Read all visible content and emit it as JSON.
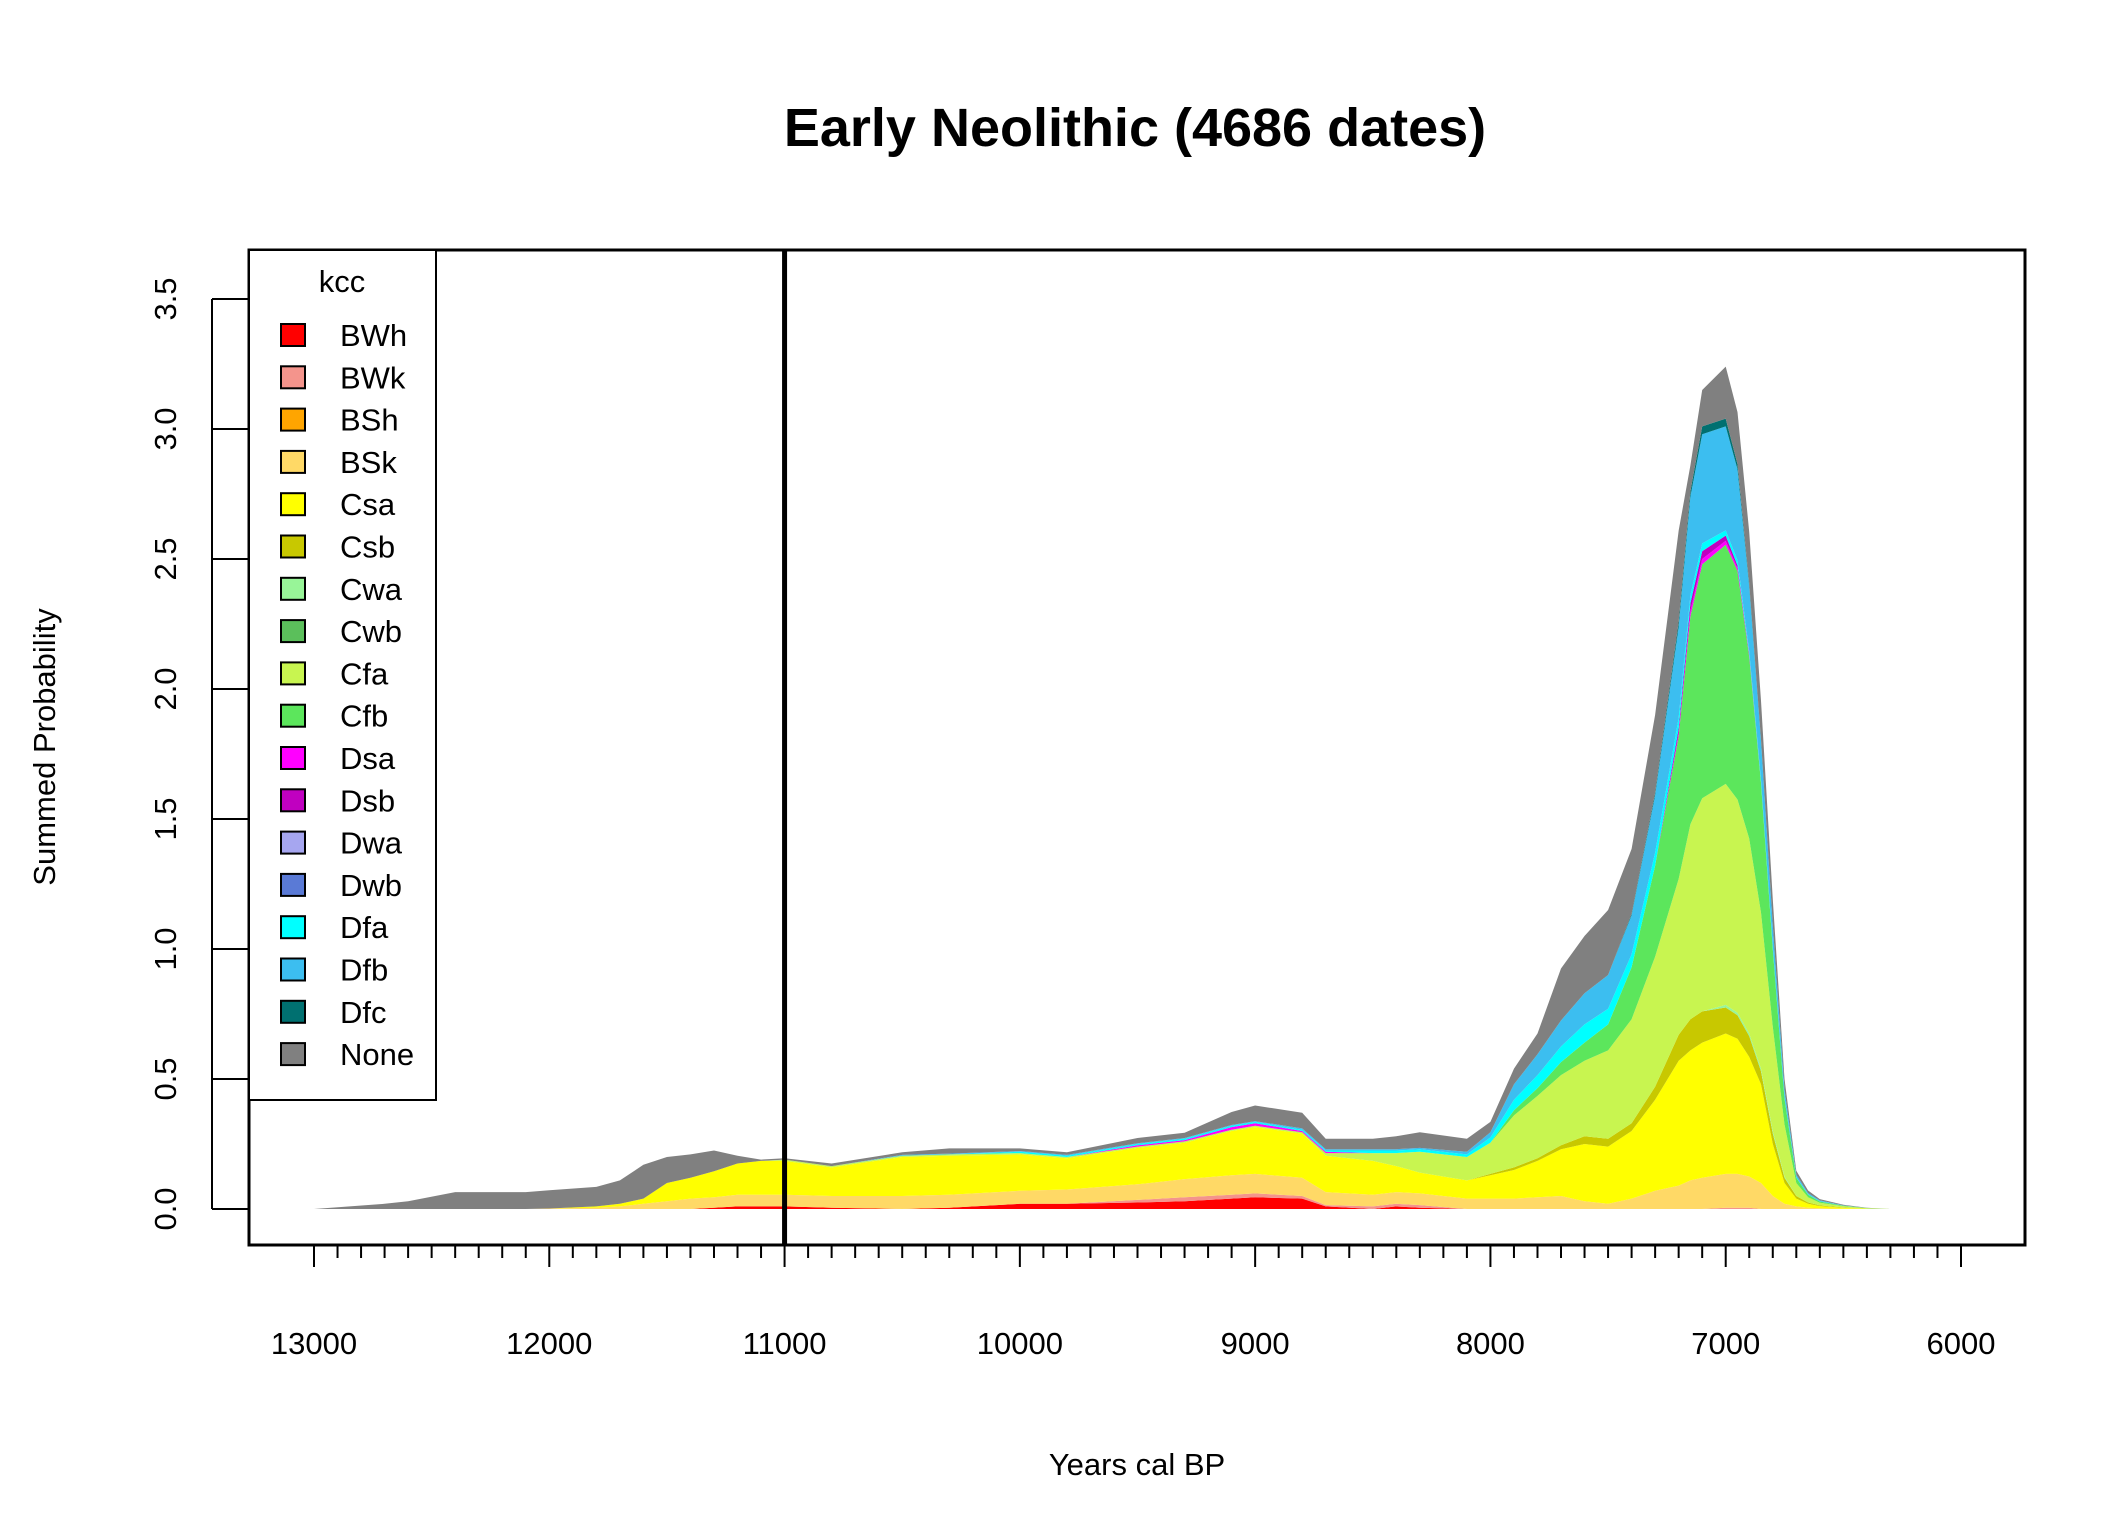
{
  "chart_data": {
    "type": "area",
    "title": "Early Neolithic (4686 dates)",
    "xlabel": "Years cal BP",
    "ylabel": "Summed Probability",
    "xlim": [
      13000,
      6000
    ],
    "ylim": [
      0,
      3.5
    ],
    "x_ticks": [
      "13000",
      "12000",
      "11000",
      "10000",
      "9000",
      "8000",
      "7000",
      "6000"
    ],
    "y_ticks": [
      "0.0",
      "0.5",
      "1.0",
      "1.5",
      "2.0",
      "2.5",
      "3.0",
      "3.5"
    ],
    "reference_line_x": 11000,
    "legend": {
      "title": "kcc",
      "position": "top-left"
    },
    "x": [
      13000,
      12700,
      12600,
      12400,
      12100,
      12000,
      11800,
      11700,
      11600,
      11500,
      11400,
      11300,
      11200,
      11100,
      11000,
      10800,
      10500,
      10300,
      10000,
      9800,
      9500,
      9300,
      9100,
      9000,
      8800,
      8700,
      8500,
      8400,
      8300,
      8100,
      8000,
      7900,
      7800,
      7700,
      7600,
      7500,
      7400,
      7300,
      7200,
      7150,
      7100,
      7000,
      6950,
      6900,
      6850,
      6800,
      6750,
      6700,
      6650,
      6600,
      6500,
      6400,
      6300,
      6200,
      6000
    ],
    "series": [
      {
        "name": "BWh",
        "color": "#ff0000",
        "values": [
          0,
          0,
          0,
          0,
          0,
          0,
          0,
          0,
          0,
          0,
          0,
          0.005,
          0.01,
          0.01,
          0.01,
          0.005,
          0,
          0.005,
          0.02,
          0.02,
          0.025,
          0.03,
          0.04,
          0.045,
          0.04,
          0.01,
          0,
          0.01,
          0.005,
          0,
          0,
          0,
          0,
          0,
          0,
          0,
          0,
          0,
          0,
          0,
          0,
          0,
          0,
          0,
          0,
          0,
          0,
          0,
          0,
          0,
          0,
          0,
          0,
          0,
          0
        ]
      },
      {
        "name": "BWk",
        "color": "#f4948c",
        "values": [
          0,
          0,
          0,
          0,
          0,
          0,
          0,
          0,
          0,
          0,
          0,
          0,
          0,
          0,
          0,
          0,
          0,
          0,
          0,
          0,
          0.01,
          0.015,
          0.015,
          0.015,
          0.01,
          0.005,
          0.01,
          0.01,
          0.01,
          0,
          0,
          0,
          0,
          0,
          0,
          0,
          0,
          0,
          0,
          0,
          0,
          0.005,
          0.005,
          0.005,
          0,
          0,
          0,
          0,
          0,
          0,
          0,
          0,
          0,
          0,
          0
        ]
      },
      {
        "name": "BSh",
        "color": "#ffa500",
        "values": [
          0,
          0,
          0,
          0,
          0,
          0,
          0,
          0,
          0,
          0,
          0,
          0,
          0,
          0,
          0,
          0,
          0,
          0,
          0,
          0,
          0,
          0,
          0,
          0,
          0,
          0,
          0,
          0,
          0,
          0,
          0,
          0,
          0,
          0,
          0,
          0,
          0,
          0,
          0,
          0,
          0,
          0,
          0,
          0,
          0,
          0,
          0,
          0,
          0,
          0,
          0,
          0,
          0,
          0,
          0
        ]
      },
      {
        "name": "BSk",
        "color": "#ffd966",
        "values": [
          0,
          0,
          0,
          0,
          0,
          0.002,
          0.005,
          0.01,
          0.02,
          0.03,
          0.04,
          0.04,
          0.045,
          0.045,
          0.045,
          0.045,
          0.05,
          0.05,
          0.05,
          0.055,
          0.06,
          0.07,
          0.075,
          0.075,
          0.07,
          0.05,
          0.045,
          0.045,
          0.045,
          0.04,
          0.04,
          0.04,
          0.045,
          0.05,
          0.03,
          0.02,
          0.04,
          0.07,
          0.09,
          0.11,
          0.12,
          0.13,
          0.13,
          0.12,
          0.1,
          0.05,
          0.02,
          0.01,
          0.005,
          0.003,
          0.001,
          0,
          0,
          0,
          0
        ]
      },
      {
        "name": "Csa",
        "color": "#ffff00",
        "values": [
          0,
          0,
          0,
          0,
          0,
          0,
          0.005,
          0.01,
          0.02,
          0.07,
          0.08,
          0.1,
          0.12,
          0.13,
          0.13,
          0.11,
          0.15,
          0.15,
          0.14,
          0.12,
          0.14,
          0.14,
          0.17,
          0.18,
          0.17,
          0.14,
          0.13,
          0.1,
          0.08,
          0.07,
          0.09,
          0.11,
          0.14,
          0.18,
          0.22,
          0.22,
          0.26,
          0.35,
          0.48,
          0.5,
          0.52,
          0.54,
          0.52,
          0.46,
          0.38,
          0.2,
          0.08,
          0.03,
          0.015,
          0.008,
          0.004,
          0.001,
          0,
          0,
          0
        ]
      },
      {
        "name": "Csb",
        "color": "#c8c800",
        "values": [
          0,
          0,
          0,
          0,
          0,
          0,
          0,
          0,
          0,
          0,
          0,
          0,
          0,
          0,
          0,
          0,
          0,
          0,
          0,
          0,
          0,
          0,
          0,
          0,
          0,
          0,
          0,
          0,
          0,
          0,
          0.005,
          0.01,
          0.01,
          0.015,
          0.03,
          0.03,
          0.03,
          0.05,
          0.1,
          0.12,
          0.12,
          0.1,
          0.09,
          0.08,
          0.05,
          0.04,
          0.02,
          0.01,
          0.005,
          0.003,
          0.001,
          0,
          0,
          0,
          0
        ]
      },
      {
        "name": "Cwa",
        "color": "#98f598",
        "values": [
          0,
          0,
          0,
          0,
          0,
          0,
          0,
          0,
          0,
          0,
          0,
          0,
          0,
          0,
          0,
          0,
          0,
          0,
          0,
          0,
          0,
          0,
          0,
          0,
          0,
          0,
          0,
          0,
          0,
          0,
          0,
          0,
          0,
          0,
          0,
          0,
          0,
          0,
          0,
          0,
          0,
          0.01,
          0.01,
          0.01,
          0.01,
          0.01,
          0.005,
          0,
          0,
          0,
          0,
          0,
          0,
          0,
          0
        ]
      },
      {
        "name": "Cwb",
        "color": "#5bbf5b",
        "values": [
          0,
          0,
          0,
          0,
          0,
          0,
          0,
          0,
          0,
          0,
          0,
          0,
          0,
          0,
          0,
          0,
          0,
          0,
          0,
          0,
          0,
          0,
          0,
          0,
          0,
          0,
          0,
          0,
          0,
          0,
          0,
          0,
          0,
          0,
          0,
          0,
          0,
          0,
          0,
          0,
          0,
          0,
          0,
          0,
          0,
          0,
          0,
          0,
          0,
          0,
          0,
          0,
          0,
          0,
          0
        ]
      },
      {
        "name": "Cfa",
        "color": "#c8f550",
        "values": [
          0,
          0,
          0,
          0,
          0,
          0,
          0,
          0,
          0,
          0,
          0,
          0,
          0,
          0,
          0.005,
          0.005,
          0.005,
          0.005,
          0.005,
          0.005,
          0.005,
          0.005,
          0.005,
          0.005,
          0.005,
          0.01,
          0.03,
          0.05,
          0.08,
          0.09,
          0.12,
          0.2,
          0.24,
          0.27,
          0.29,
          0.34,
          0.4,
          0.5,
          0.6,
          0.75,
          0.82,
          0.85,
          0.82,
          0.75,
          0.6,
          0.4,
          0.2,
          0.05,
          0.02,
          0.01,
          0.005,
          0.002,
          0,
          0,
          0
        ]
      },
      {
        "name": "Cfb",
        "color": "#5ce65c",
        "values": [
          0,
          0,
          0,
          0,
          0,
          0,
          0,
          0,
          0,
          0,
          0,
          0,
          0,
          0,
          0,
          0,
          0,
          0,
          0,
          0,
          0,
          0,
          0,
          0,
          0,
          0,
          0,
          0,
          0,
          0,
          0,
          0.02,
          0.03,
          0.05,
          0.07,
          0.1,
          0.2,
          0.35,
          0.55,
          0.8,
          0.9,
          0.92,
          0.88,
          0.7,
          0.5,
          0.3,
          0.1,
          0.02,
          0.01,
          0.005,
          0.002,
          0.001,
          0,
          0,
          0
        ]
      },
      {
        "name": "Dsa",
        "color": "#ff00ff",
        "values": [
          0,
          0,
          0,
          0,
          0,
          0,
          0,
          0,
          0,
          0,
          0,
          0,
          0,
          0,
          0,
          0,
          0,
          0,
          0,
          0,
          0.005,
          0.005,
          0.01,
          0.01,
          0.005,
          0.005,
          0,
          0,
          0,
          0,
          0,
          0,
          0,
          0,
          0,
          0,
          0,
          0,
          0.01,
          0.02,
          0.02,
          0.015,
          0.01,
          0.005,
          0,
          0,
          0,
          0,
          0,
          0,
          0,
          0,
          0,
          0,
          0
        ]
      },
      {
        "name": "Dsb",
        "color": "#c000c0",
        "values": [
          0,
          0,
          0,
          0,
          0,
          0,
          0,
          0,
          0,
          0,
          0,
          0,
          0,
          0,
          0,
          0,
          0,
          0,
          0,
          0,
          0,
          0,
          0,
          0,
          0,
          0,
          0,
          0,
          0,
          0,
          0,
          0,
          0,
          0,
          0,
          0,
          0,
          0,
          0.02,
          0.03,
          0.03,
          0.02,
          0.01,
          0.005,
          0,
          0,
          0,
          0,
          0,
          0,
          0,
          0,
          0,
          0,
          0
        ]
      },
      {
        "name": "Dwa",
        "color": "#a6a6f0",
        "values": [
          0,
          0,
          0,
          0,
          0,
          0,
          0,
          0,
          0,
          0,
          0,
          0,
          0,
          0,
          0,
          0,
          0,
          0,
          0,
          0,
          0,
          0,
          0,
          0,
          0,
          0,
          0,
          0,
          0,
          0,
          0,
          0,
          0,
          0,
          0,
          0,
          0,
          0,
          0,
          0,
          0,
          0,
          0,
          0,
          0,
          0,
          0,
          0,
          0,
          0,
          0,
          0,
          0,
          0,
          0
        ]
      },
      {
        "name": "Dwb",
        "color": "#5a7ad6",
        "values": [
          0,
          0,
          0,
          0,
          0,
          0,
          0,
          0,
          0,
          0,
          0,
          0,
          0,
          0,
          0,
          0,
          0,
          0,
          0,
          0,
          0,
          0,
          0,
          0,
          0,
          0,
          0,
          0,
          0,
          0,
          0,
          0,
          0,
          0,
          0,
          0,
          0,
          0,
          0,
          0,
          0,
          0,
          0,
          0,
          0,
          0,
          0,
          0,
          0,
          0,
          0,
          0,
          0,
          0,
          0
        ]
      },
      {
        "name": "Dfa",
        "color": "#00ffff",
        "values": [
          0,
          0,
          0,
          0,
          0,
          0,
          0,
          0,
          0,
          0,
          0,
          0,
          0,
          0,
          0,
          0,
          0,
          0,
          0.005,
          0.005,
          0.005,
          0.005,
          0.005,
          0.005,
          0.005,
          0.005,
          0.01,
          0.01,
          0.01,
          0.01,
          0.02,
          0.04,
          0.05,
          0.06,
          0.07,
          0.06,
          0.05,
          0.05,
          0.04,
          0.03,
          0.03,
          0.02,
          0.02,
          0.01,
          0.01,
          0.01,
          0.005,
          0.002,
          0.001,
          0.001,
          0,
          0,
          0,
          0,
          0
        ]
      },
      {
        "name": "Dfb",
        "color": "#3cbef0",
        "values": [
          0,
          0,
          0,
          0,
          0,
          0,
          0,
          0,
          0,
          0,
          0,
          0,
          0,
          0,
          0,
          0,
          0.003,
          0.003,
          0.003,
          0.003,
          0.003,
          0.003,
          0.003,
          0.003,
          0.005,
          0.005,
          0.005,
          0.005,
          0.005,
          0.01,
          0.02,
          0.06,
          0.08,
          0.1,
          0.12,
          0.13,
          0.15,
          0.22,
          0.35,
          0.38,
          0.42,
          0.4,
          0.35,
          0.25,
          0.15,
          0.08,
          0.03,
          0.01,
          0.005,
          0.003,
          0.001,
          0,
          0,
          0,
          0
        ]
      },
      {
        "name": "Dfc",
        "color": "#007070",
        "values": [
          0,
          0,
          0,
          0,
          0,
          0,
          0,
          0,
          0,
          0,
          0,
          0,
          0,
          0,
          0,
          0,
          0,
          0,
          0,
          0,
          0,
          0,
          0,
          0,
          0,
          0,
          0,
          0,
          0,
          0,
          0,
          0,
          0,
          0,
          0,
          0,
          0.005,
          0.01,
          0.02,
          0.02,
          0.03,
          0.03,
          0.02,
          0.01,
          0.005,
          0,
          0,
          0,
          0,
          0,
          0,
          0,
          0,
          0,
          0
        ]
      },
      {
        "name": "None",
        "color": "#808080",
        "values": [
          0,
          0.02,
          0.03,
          0.065,
          0.065,
          0.07,
          0.075,
          0.09,
          0.13,
          0.1,
          0.09,
          0.08,
          0.03,
          0.005,
          0.005,
          0.01,
          0.01,
          0.02,
          0.01,
          0.01,
          0.02,
          0.02,
          0.05,
          0.06,
          0.06,
          0.04,
          0.04,
          0.05,
          0.06,
          0.05,
          0.04,
          0.06,
          0.08,
          0.2,
          0.22,
          0.25,
          0.25,
          0.3,
          0.35,
          0.1,
          0.14,
          0.2,
          0.2,
          0.2,
          0.15,
          0.1,
          0.04,
          0.015,
          0.01,
          0.005,
          0.002,
          0.001,
          0,
          0,
          0
        ]
      }
    ]
  }
}
